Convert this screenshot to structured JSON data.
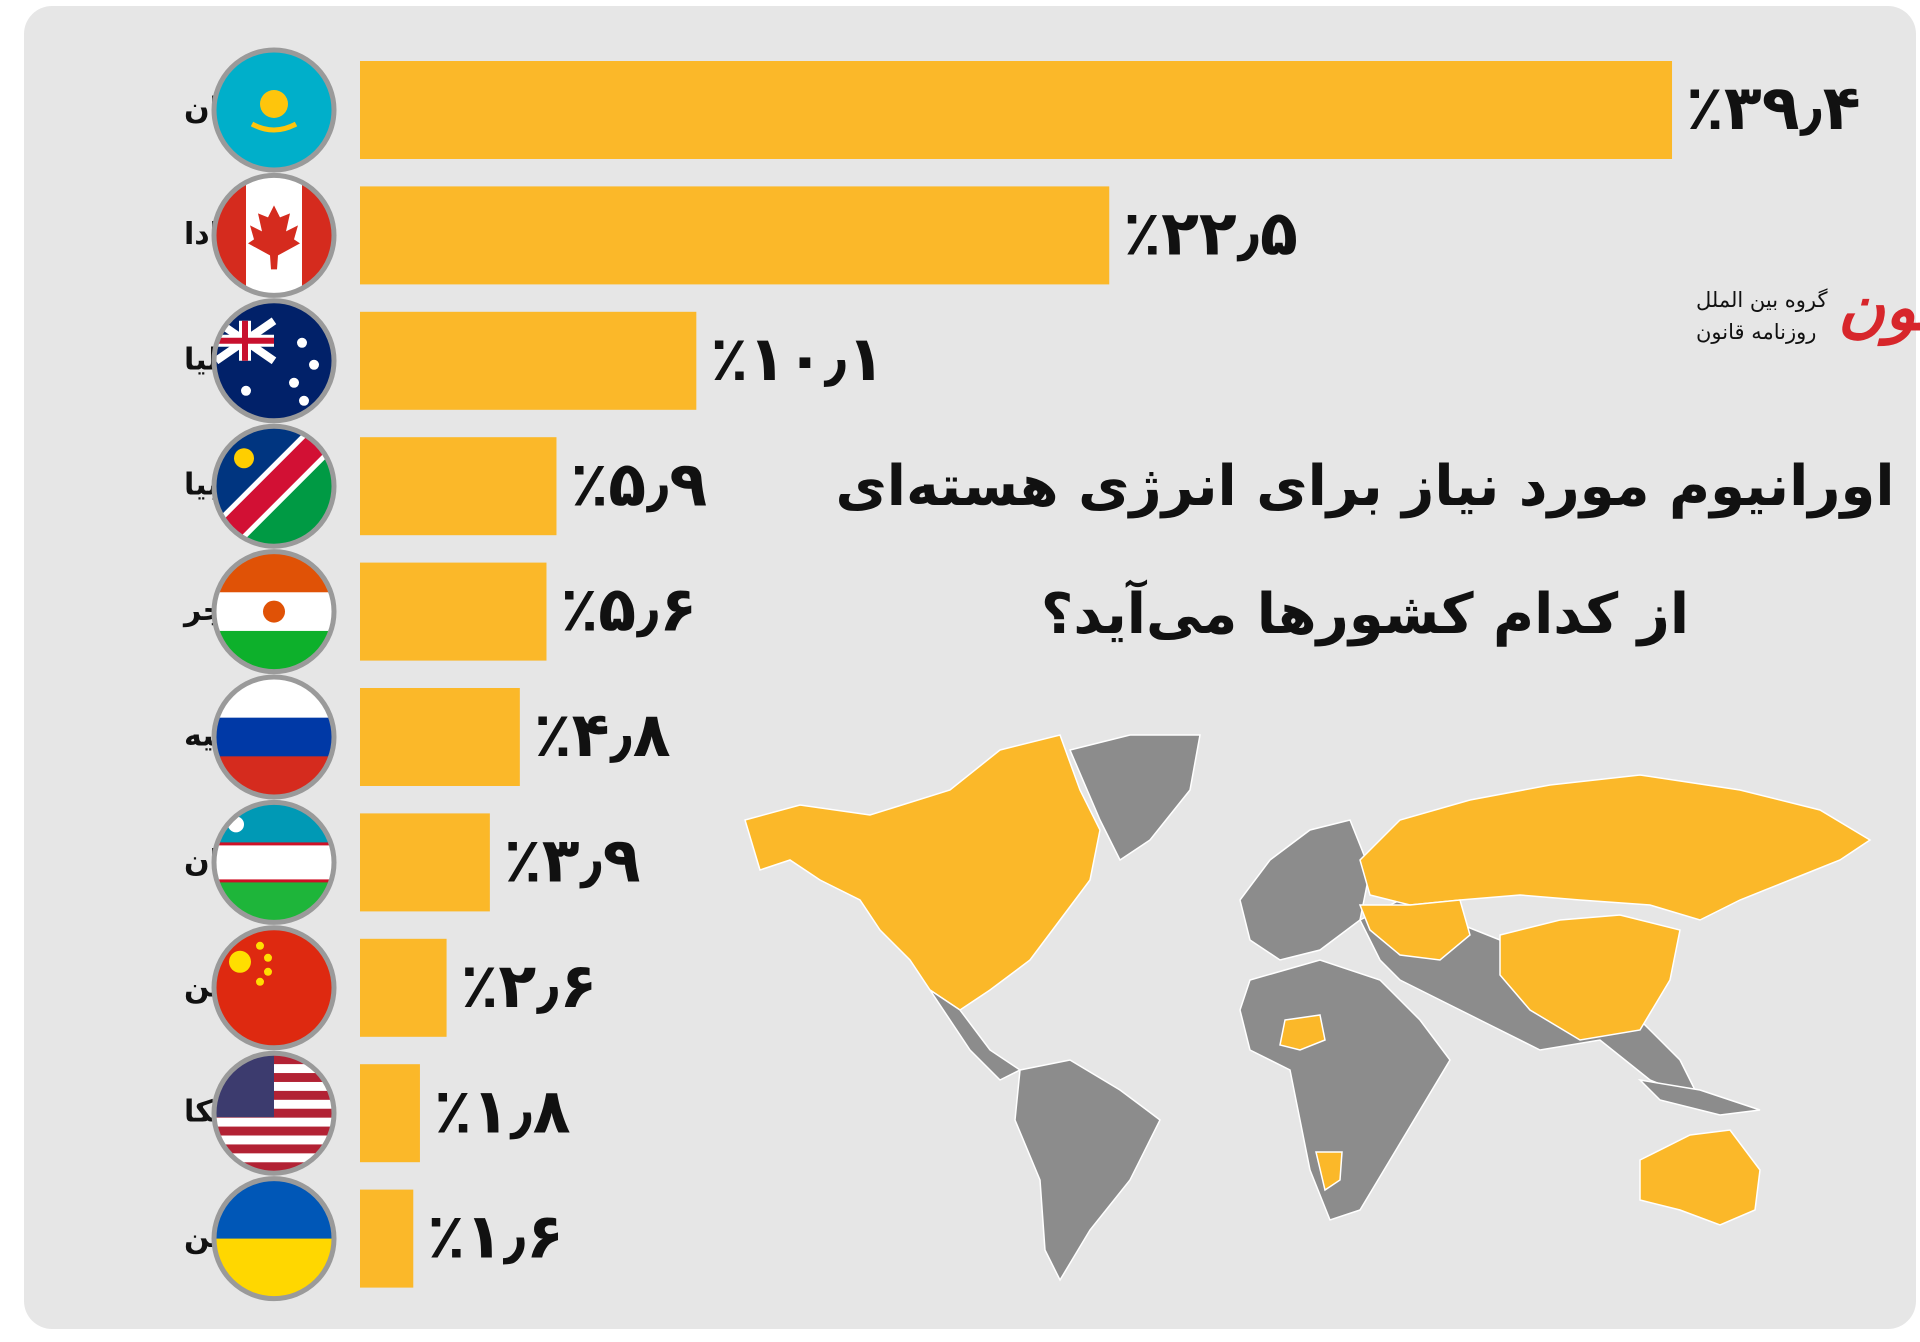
{
  "chart_data": {
    "type": "bar",
    "orientation": "horizontal",
    "title": [
      "اورانیوم مورد نیاز برای انرژی هسته‌ای",
      "از کدام کشورها می‌آید؟"
    ],
    "categories": [
      "قزاقستان",
      "کانادا",
      "استرالیا",
      "نامیبیا",
      "نیجر",
      "روسیه",
      "ازبکستان",
      "چین",
      "آمریکا",
      "اوکراین"
    ],
    "values": [
      39.4,
      22.5,
      10.1,
      5.9,
      5.6,
      4.8,
      3.9,
      2.6,
      1.8,
      1.6
    ],
    "value_labels": [
      "٪۳۹٫۴",
      "٪۲۲٫۵",
      "٪۱۰٫۱",
      "٪۵٫۹",
      "٪۵٫۶",
      "٪۴٫۸",
      "٪۳٫۹",
      "٪۲٫۶",
      "٪۱٫۸",
      "٪۱٫۶"
    ],
    "color": "#fbb829"
  },
  "logo": {
    "name": "قانون",
    "lines": [
      "گروه بین الملل",
      "روزنامه قانون"
    ]
  }
}
